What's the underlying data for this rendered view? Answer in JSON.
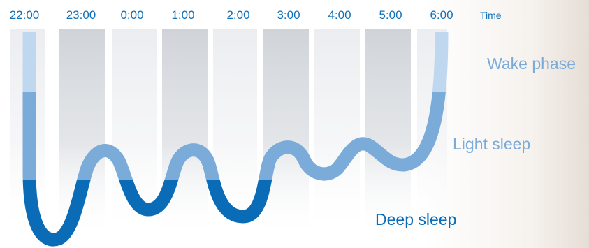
{
  "time_axis": {
    "ticks": [
      "22:00",
      "23:00",
      "0:00",
      "1:00",
      "2:00",
      "3:00",
      "4:00",
      "5:00",
      "6:00"
    ],
    "label": "Time"
  },
  "phases": {
    "wake": "Wake phase",
    "light": "Light sleep",
    "deep": "Deep sleep"
  },
  "colors": {
    "text": "#1170b8",
    "wake_band": "#bfd8f0",
    "light_band": "#7aabd9",
    "deep_band": "#0a6cb6",
    "stripe_dark": "#d3d7dc",
    "stripe_light": "#eceef0"
  }
}
